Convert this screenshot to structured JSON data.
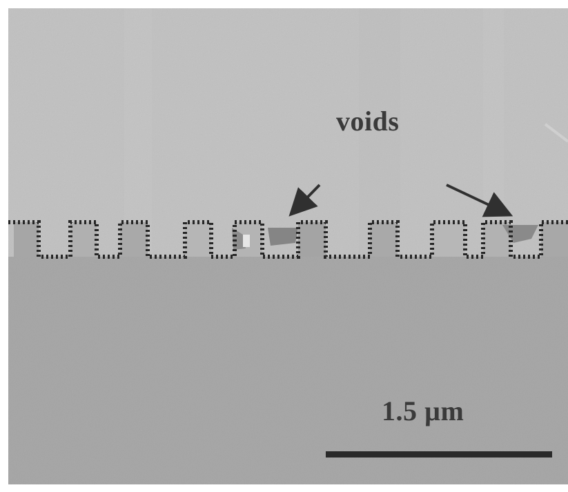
{
  "annotations": {
    "voids_label": "voids",
    "scale_label": "1.5 µm"
  },
  "colors": {
    "upper_layer": "#c3c3c3",
    "lower_layer": "#a8a8a8",
    "trench_outline": "#262626",
    "void": "#8c8c8c",
    "scale_bar": "#2a2a2a",
    "arrow": "#303030"
  }
}
